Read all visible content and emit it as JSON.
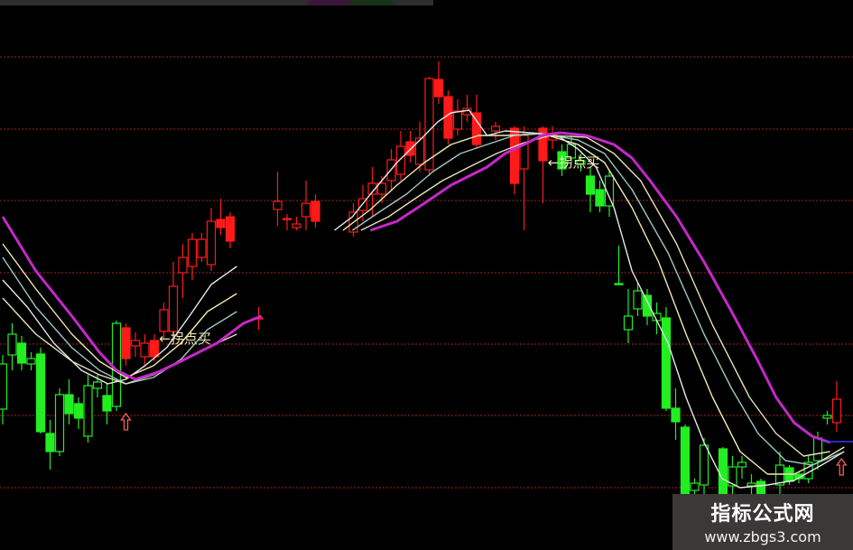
{
  "chart_data": {
    "type": "candlestick",
    "title": "",
    "xlabel": "",
    "ylabel": "",
    "ylim": [
      0,
      60
    ],
    "xlim": [
      0,
      89
    ],
    "grid": "horizontal dotted red",
    "gridlines": [
      53.7,
      45.7,
      37.8,
      29.8,
      21.9,
      14.0,
      6.0
    ],
    "colors": {
      "up_signal": "#ff1a1a",
      "down_signal": "#22ee22",
      "grid": "#8a1a1a",
      "background": "#000000"
    },
    "candle_fields": [
      "index",
      "open",
      "close",
      "high",
      "low",
      "color"
    ],
    "candles": [
      [
        0,
        14.7,
        19.7,
        20.7,
        13.0,
        "green"
      ],
      [
        1,
        20.7,
        23.0,
        24.2,
        19.0,
        "green"
      ],
      [
        2,
        22.0,
        19.8,
        22.8,
        19.0,
        "green"
      ],
      [
        3,
        19.7,
        20.3,
        21.0,
        19.0,
        "green"
      ],
      [
        4,
        20.8,
        12.2,
        21.5,
        12.0,
        "green"
      ],
      [
        5,
        12.0,
        10.0,
        13.5,
        8.0,
        "green"
      ],
      [
        6,
        10.0,
        16.3,
        17.0,
        9.5,
        "green"
      ],
      [
        7,
        16.3,
        14.2,
        18.0,
        13.0,
        "green"
      ],
      [
        8,
        15.3,
        13.7,
        16.0,
        12.5,
        "green"
      ],
      [
        9,
        11.7,
        17.3,
        18.5,
        11.0,
        "green"
      ],
      [
        10,
        17.0,
        17.7,
        18.5,
        16.0,
        "green"
      ],
      [
        11,
        16.2,
        14.5,
        17.5,
        13.0,
        "green"
      ],
      [
        12,
        15.0,
        24.2,
        24.5,
        14.5,
        "green"
      ],
      [
        13,
        23.7,
        20.3,
        24.2,
        19.5,
        "red"
      ],
      [
        14,
        21.7,
        22.3,
        23.2,
        20.5,
        "red"
      ],
      [
        15,
        20.5,
        22.0,
        23.0,
        19.5,
        "red"
      ],
      [
        16,
        22.3,
        20.5,
        23.0,
        20.0,
        "red"
      ],
      [
        17,
        23.3,
        25.7,
        26.5,
        22.5,
        "red"
      ],
      [
        18,
        23.3,
        28.3,
        31.0,
        22.8,
        "red"
      ],
      [
        19,
        29.8,
        31.5,
        33.0,
        27.0,
        "red"
      ],
      [
        20,
        30.5,
        33.5,
        34.2,
        29.0,
        "red"
      ],
      [
        21,
        31.5,
        33.5,
        34.2,
        31.0,
        "red"
      ],
      [
        22,
        30.7,
        35.5,
        37.0,
        30.0,
        "red"
      ],
      [
        23,
        35.7,
        34.8,
        38.0,
        34.0,
        "red"
      ],
      [
        24,
        36.0,
        33.3,
        36.5,
        32.5,
        "red"
      ],
      [
        27,
        24.8,
        24.7,
        26.0,
        23.5,
        "red"
      ],
      [
        29,
        36.8,
        37.7,
        41.0,
        35.0,
        "red"
      ],
      [
        30,
        35.7,
        35.8,
        36.3,
        34.5,
        "red"
      ],
      [
        31,
        34.8,
        35.2,
        36.0,
        34.5,
        "red"
      ],
      [
        32,
        36.0,
        37.5,
        40.0,
        34.5,
        "red"
      ],
      [
        33,
        37.7,
        35.5,
        38.5,
        34.8,
        "red"
      ],
      [
        37,
        34.3,
        36.5,
        37.5,
        33.8,
        "red"
      ],
      [
        38,
        36.7,
        38.0,
        39.5,
        35.5,
        "red"
      ],
      [
        39,
        38.5,
        39.7,
        41.5,
        36.0,
        "red"
      ],
      [
        40,
        38.5,
        39.7,
        40.5,
        37.5,
        "red"
      ],
      [
        41,
        40.0,
        42.3,
        43.5,
        39.0,
        "red"
      ],
      [
        42,
        40.7,
        43.8,
        45.5,
        40.0,
        "red"
      ],
      [
        43,
        44.3,
        42.8,
        45.5,
        42.0,
        "red"
      ],
      [
        44,
        41.8,
        44.7,
        46.5,
        41.0,
        "red"
      ],
      [
        45,
        41.2,
        51.3,
        51.5,
        40.5,
        "red"
      ],
      [
        46,
        51.2,
        49.3,
        53.2,
        48.5,
        "red"
      ],
      [
        47,
        49.3,
        44.7,
        50.0,
        44.0,
        "red"
      ],
      [
        48,
        45.7,
        47.7,
        49.0,
        45.0,
        "red"
      ],
      [
        49,
        47.3,
        48.0,
        49.5,
        46.5,
        "red"
      ],
      [
        50,
        47.5,
        44.0,
        49.5,
        43.5,
        "red"
      ],
      [
        52,
        45.5,
        46.0,
        46.5,
        44.5,
        "red"
      ],
      [
        54,
        45.8,
        39.7,
        46.0,
        38.5,
        "red"
      ],
      [
        55,
        41.3,
        45.0,
        46.0,
        34.5,
        "red"
      ],
      [
        57,
        45.8,
        42.2,
        46.0,
        37.5,
        "red"
      ],
      [
        58,
        44.5,
        45.0,
        46.0,
        43.5,
        "red"
      ],
      [
        59,
        43.2,
        41.3,
        44.0,
        40.5,
        "green"
      ],
      [
        60,
        42.5,
        44.0,
        45.0,
        42.0,
        "green"
      ],
      [
        61,
        41.8,
        42.2,
        43.0,
        41.0,
        "green"
      ],
      [
        62,
        40.5,
        38.5,
        41.5,
        36.5,
        "green"
      ],
      [
        63,
        39.0,
        37.2,
        40.0,
        36.5,
        "green"
      ],
      [
        64,
        37.2,
        40.5,
        41.2,
        36.0,
        "green"
      ],
      [
        65,
        28.5,
        28.6,
        32.8,
        28.5,
        "green"
      ],
      [
        66,
        23.5,
        25.0,
        28.0,
        22.0,
        "green"
      ],
      [
        67,
        25.8,
        27.8,
        28.8,
        25.0,
        "green"
      ],
      [
        68,
        27.3,
        25.0,
        28.0,
        24.0,
        "green"
      ],
      [
        69,
        24.5,
        25.3,
        26.5,
        23.0,
        "green"
      ],
      [
        70,
        24.8,
        14.8,
        26.0,
        14.5,
        "green"
      ],
      [
        71,
        14.8,
        13.3,
        17.0,
        11.3,
        "green"
      ],
      [
        72,
        12.7,
        5.3,
        13.0,
        5.3,
        "green"
      ],
      [
        73,
        5.7,
        6.5,
        7.0,
        5.3,
        "green"
      ],
      [
        74,
        6.3,
        10.7,
        11.5,
        5.3,
        "green"
      ],
      [
        76,
        10.3,
        5.3,
        10.5,
        5.3,
        "green"
      ],
      [
        77,
        6.2,
        8.3,
        9.5,
        5.3,
        "green"
      ],
      [
        78,
        8.3,
        8.8,
        9.5,
        7.0,
        "green"
      ],
      [
        79,
        6.2,
        6.5,
        7.5,
        5.3,
        "green"
      ],
      [
        80,
        6.7,
        5.3,
        7.0,
        5.3,
        "green"
      ],
      [
        82,
        6.3,
        8.5,
        10.0,
        5.3,
        "green"
      ],
      [
        83,
        8.2,
        6.7,
        8.5,
        6.3,
        "green"
      ],
      [
        84,
        7.5,
        7.0,
        7.8,
        6.5,
        "green"
      ],
      [
        85,
        7.0,
        8.8,
        9.5,
        6.5,
        "green"
      ],
      [
        86,
        9.0,
        11.5,
        12.2,
        8.0,
        "green"
      ],
      [
        87,
        13.7,
        14.0,
        14.5,
        13.0,
        "green"
      ],
      [
        88,
        13.2,
        15.8,
        17.8,
        12.2,
        "red"
      ]
    ],
    "series": [
      {
        "color": "#e8e8e8",
        "segments": [
          [
            [
              0,
              29
            ],
            [
              2.6,
              26
            ],
            [
              5.4,
              22
            ],
            [
              8.3,
              19
            ],
            [
              11.1,
              17.5
            ],
            [
              13,
              18
            ],
            [
              15,
              19.5
            ],
            [
              17.3,
              21.5
            ],
            [
              19.7,
              25
            ],
            [
              22,
              28.5
            ],
            [
              24.7,
              30.5
            ]
          ],
          [
            [
              35,
              34.5
            ],
            [
              36.9,
              36
            ],
            [
              38.8,
              38.5
            ],
            [
              41.6,
              42
            ],
            [
              44.5,
              45
            ],
            [
              45.9,
              46.5
            ],
            [
              47.3,
              47.5
            ],
            [
              49.2,
              47.8
            ],
            [
              51.1,
              45
            ],
            [
              53,
              45.5
            ],
            [
              56.9,
              45.2
            ],
            [
              58.8,
              44.8
            ],
            [
              60.7,
              43.5
            ],
            [
              62.6,
              41.5
            ],
            [
              64.5,
              37
            ],
            [
              66.4,
              30
            ],
            [
              68.3,
              26
            ],
            [
              70.2,
              22
            ],
            [
              72.1,
              16
            ],
            [
              74,
              11
            ],
            [
              75.9,
              7
            ],
            [
              77.8,
              6
            ],
            [
              80.7,
              6.3
            ],
            [
              83.5,
              6.8
            ],
            [
              86.4,
              8.5
            ],
            [
              88.8,
              10
            ]
          ]
        ]
      },
      {
        "color": "#f2eab0",
        "segments": [
          [
            [
              0,
              33
            ],
            [
              3.5,
              28
            ],
            [
              7.3,
              23
            ],
            [
              10.2,
              20
            ],
            [
              13,
              18.2
            ],
            [
              15.9,
              19.5
            ],
            [
              18.8,
              22
            ],
            [
              21.6,
              25.5
            ],
            [
              24.7,
              27.5
            ]
          ],
          [
            [
              35.9,
              34.5
            ],
            [
              38.8,
              36.8
            ],
            [
              41.6,
              39.5
            ],
            [
              44.5,
              42
            ],
            [
              47.3,
              44
            ],
            [
              50.2,
              45
            ],
            [
              53,
              45
            ],
            [
              56.9,
              45.2
            ],
            [
              60.7,
              44
            ],
            [
              63.5,
              42
            ],
            [
              66.4,
              37
            ],
            [
              69.2,
              31
            ],
            [
              72.1,
              23
            ],
            [
              74.9,
              16
            ],
            [
              77.8,
              10
            ],
            [
              80.7,
              7.5
            ],
            [
              83.5,
              7.5
            ],
            [
              86.4,
              9
            ],
            [
              88.8,
              10.5
            ]
          ]
        ]
      },
      {
        "color": "#9fc9c4",
        "segments": [
          [
            [
              0,
              31.5
            ],
            [
              3.5,
              26
            ],
            [
              7.3,
              21.5
            ],
            [
              10.2,
              19
            ],
            [
              13,
              17.5
            ],
            [
              15.9,
              18.2
            ],
            [
              18.8,
              20.2
            ],
            [
              21.6,
              23.5
            ],
            [
              24.7,
              25.5
            ]
          ],
          [
            [
              36.9,
              34.5
            ],
            [
              39.7,
              36.5
            ],
            [
              42.6,
              38.5
            ],
            [
              45.4,
              41
            ],
            [
              48.3,
              43
            ],
            [
              51.1,
              44
            ],
            [
              54,
              45
            ],
            [
              56.9,
              45.2
            ],
            [
              60.7,
              44.5
            ],
            [
              63.5,
              43
            ],
            [
              66.4,
              39
            ],
            [
              70.2,
              32
            ],
            [
              74,
              23
            ],
            [
              76.9,
              17
            ],
            [
              79.7,
              12
            ],
            [
              82.6,
              9
            ],
            [
              85.4,
              8.5
            ],
            [
              88.8,
              10
            ]
          ]
        ]
      },
      {
        "color": "#e6e0b8",
        "segments": [
          [
            [
              0,
              27
            ],
            [
              3.5,
              23
            ],
            [
              7.3,
              20
            ],
            [
              10.2,
              18.5
            ],
            [
              13,
              17.5
            ],
            [
              15.9,
              18.5
            ],
            [
              18.8,
              20
            ],
            [
              21.6,
              21.5
            ],
            [
              24.7,
              23
            ]
          ],
          [
            [
              37.8,
              34.5
            ],
            [
              40.7,
              36
            ],
            [
              43.5,
              38
            ],
            [
              46.4,
              40
            ],
            [
              49.2,
              41.5
            ],
            [
              52.1,
              43
            ],
            [
              55,
              44.2
            ],
            [
              57.8,
              45
            ],
            [
              61.6,
              44.8
            ],
            [
              64.5,
              43
            ],
            [
              67.3,
              40
            ],
            [
              71.1,
              33
            ],
            [
              74.9,
              24
            ],
            [
              78.8,
              16
            ],
            [
              81.6,
              12
            ],
            [
              84.5,
              9.5
            ],
            [
              87.3,
              10
            ]
          ]
        ]
      },
      {
        "color": "#c528c8",
        "segments": [
          [
            [
              0,
              36
            ],
            [
              3.5,
              30
            ],
            [
              7.3,
              25
            ],
            [
              10.2,
              21
            ],
            [
              12,
              19
            ],
            [
              14,
              18
            ],
            [
              16.4,
              18.8
            ],
            [
              18.8,
              20
            ],
            [
              22.6,
              22
            ],
            [
              25.4,
              24.2
            ],
            [
              27.3,
              25
            ]
          ],
          [
            [
              38.8,
              34.5
            ],
            [
              41.6,
              35.5
            ],
            [
              44.5,
              37.5
            ],
            [
              47.3,
              39.5
            ],
            [
              49.2,
              40.5
            ],
            [
              51.1,
              41.5
            ],
            [
              53,
              43
            ],
            [
              55,
              44
            ],
            [
              56.9,
              45
            ],
            [
              58.8,
              45.3
            ],
            [
              61.6,
              45
            ],
            [
              64.5,
              44
            ],
            [
              66.4,
              42.5
            ],
            [
              68.3,
              40
            ],
            [
              71.1,
              36
            ],
            [
              74,
              31
            ],
            [
              76.9,
              25.5
            ],
            [
              79.7,
              20
            ],
            [
              81.6,
              16
            ],
            [
              83.5,
              13.2
            ],
            [
              85.4,
              11.7
            ],
            [
              87.3,
              11
            ]
          ]
        ]
      }
    ],
    "annotations": [
      {
        "text": "←拐点买",
        "index": 16.5,
        "price": 22.0,
        "color": "#f2eab0"
      },
      {
        "text": "←拐点买",
        "index": 57.5,
        "price": 41.5,
        "color": "#f2eab0"
      }
    ],
    "signal_arrows": [
      {
        "index": 13,
        "price": 13.0,
        "color": "#ff5a5a",
        "direction": "up"
      },
      {
        "index": 88.5,
        "price": 8.0,
        "color": "#ff5a5a",
        "direction": "up"
      }
    ]
  },
  "watermark": {
    "title": "指标公式网",
    "url": "www.zbgs3.com"
  }
}
